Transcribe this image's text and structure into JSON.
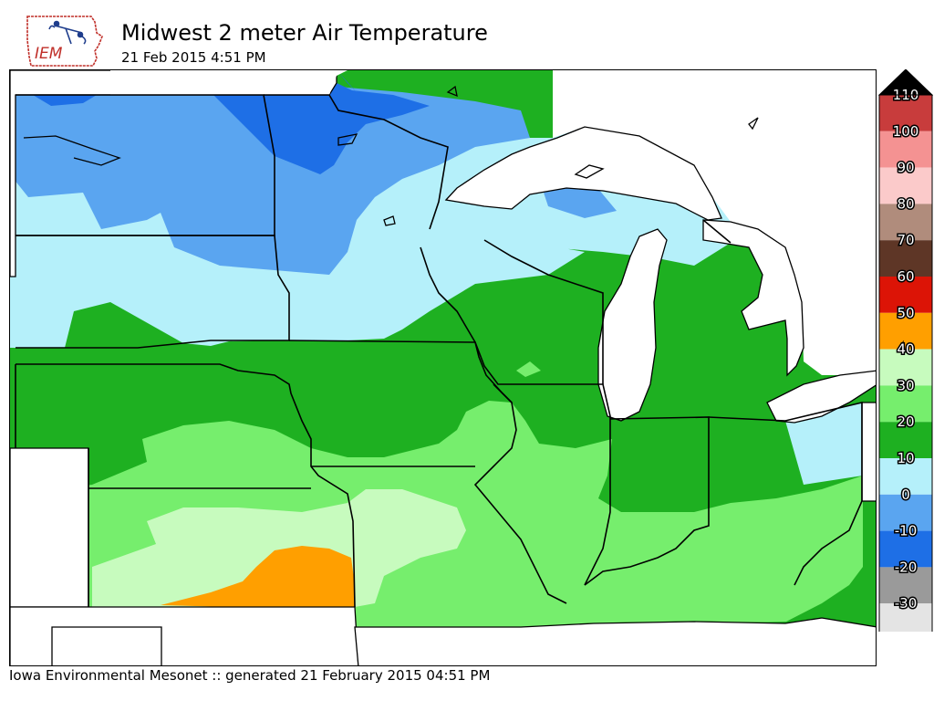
{
  "header": {
    "title": "Midwest 2 meter Air Temperature",
    "subtitle": "21 Feb 2015 4:51 PM",
    "logo_text": "IEM"
  },
  "footer": {
    "text": "Iowa Environmental Mesonet :: generated 21 February 2015 04:51 PM"
  },
  "colorbar": {
    "bins": [
      {
        "label": "110",
        "color": "#c83c3c"
      },
      {
        "label": "100",
        "color": "#f49292"
      },
      {
        "label": "90",
        "color": "#fbcaca"
      },
      {
        "label": "80",
        "color": "#b08c7c"
      },
      {
        "label": "70",
        "color": "#5e3626"
      },
      {
        "label": "60",
        "color": "#dc1406"
      },
      {
        "label": "50",
        "color": "#ff9f00"
      },
      {
        "label": "40",
        "color": "#c7fbbe"
      },
      {
        "label": "30",
        "color": "#76ee6d"
      },
      {
        "label": "20",
        "color": "#1eb021"
      },
      {
        "label": "10",
        "color": "#b5f0fa"
      },
      {
        "label": "0",
        "color": "#5aa5f0"
      },
      {
        "label": "-10",
        "color": "#1e6fe6"
      },
      {
        "label": "-20",
        "color": "#9a9a9a"
      },
      {
        "label": "-30",
        "color": "#e4e4e4"
      }
    ],
    "top_cap_color": "#000000",
    "bottom_cap_color": "#ffffff"
  }
}
